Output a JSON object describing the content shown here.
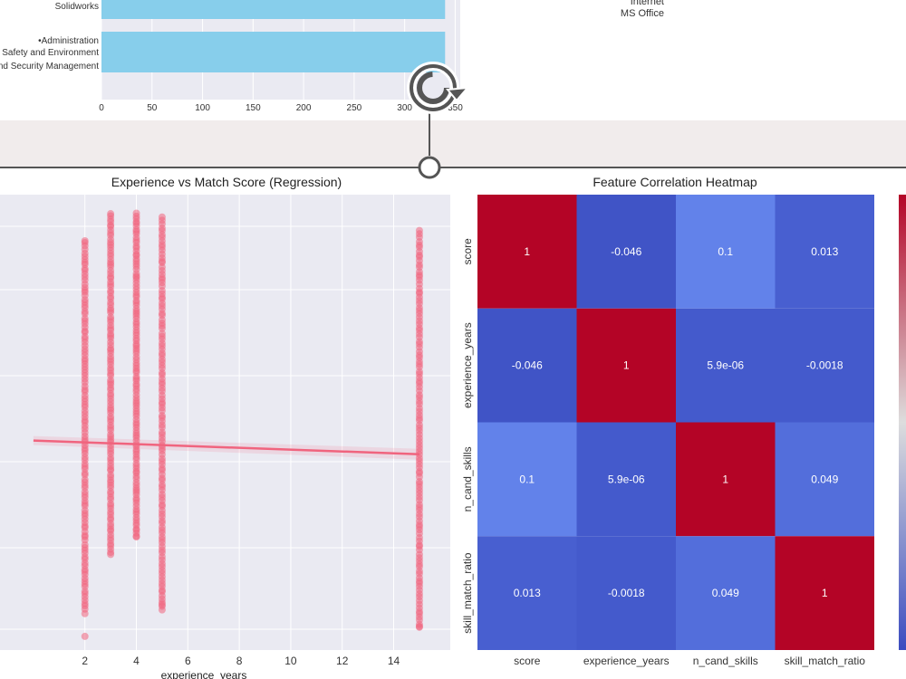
{
  "chart_data": [
    {
      "type": "bar",
      "orientation": "horizontal",
      "categories": [
        "Solidworks",
        "•Administration",
        "Safety and Environment",
        "nd Security Management"
      ],
      "bars": [
        {
          "labels": [
            "Solidworks"
          ],
          "value": 340
        },
        {
          "labels": [
            "•Administration",
            "Safety and Environment",
            "nd Security Management"
          ],
          "value": 340
        }
      ],
      "xticks": [
        0,
        50,
        100,
        150,
        200,
        250,
        300,
        350
      ],
      "xlim": [
        0,
        355
      ],
      "color": "#87ceeb",
      "grid": true
    },
    {
      "type": "list",
      "items": [
        "Internet",
        "MS Office"
      ]
    },
    {
      "type": "scatter",
      "title": "Experience vs Match Score (Regression)",
      "xlabel": "experience_years",
      "xticks": [
        2,
        4,
        6,
        8,
        10,
        12,
        14
      ],
      "xlim": [
        -1.3,
        16.2
      ],
      "x_values": [
        2,
        3,
        4,
        5,
        15
      ],
      "regression": {
        "x": [
          0,
          15
        ],
        "y": [
          0.46,
          0.43
        ]
      },
      "ylim": [
        0,
        1
      ],
      "color": "#f0647e",
      "grid": true
    },
    {
      "type": "heatmap",
      "title": "Feature Correlation Heatmap",
      "labels": [
        "score",
        "experience_years",
        "n_cand_skills",
        "skill_match_ratio"
      ],
      "values": [
        [
          1,
          -0.046,
          0.1,
          0.013
        ],
        [
          -0.046,
          1,
          5.9e-06,
          -0.0018
        ],
        [
          0.1,
          5.9e-06,
          1,
          0.049
        ],
        [
          0.013,
          -0.0018,
          0.049,
          1
        ]
      ],
      "cell_text": [
        [
          "1",
          "-0.046",
          "0.1",
          "0.013"
        ],
        [
          "-0.046",
          "1",
          "5.9e-06",
          "-0.0018"
        ],
        [
          "0.1",
          "5.9e-06",
          "1",
          "0.049"
        ],
        [
          "0.013",
          "-0.0018",
          "0.049",
          "1"
        ]
      ],
      "colormap": "coolwarm"
    }
  ],
  "ui": {
    "reload_icon": "rotate-icon",
    "handle_color": "#555555"
  }
}
